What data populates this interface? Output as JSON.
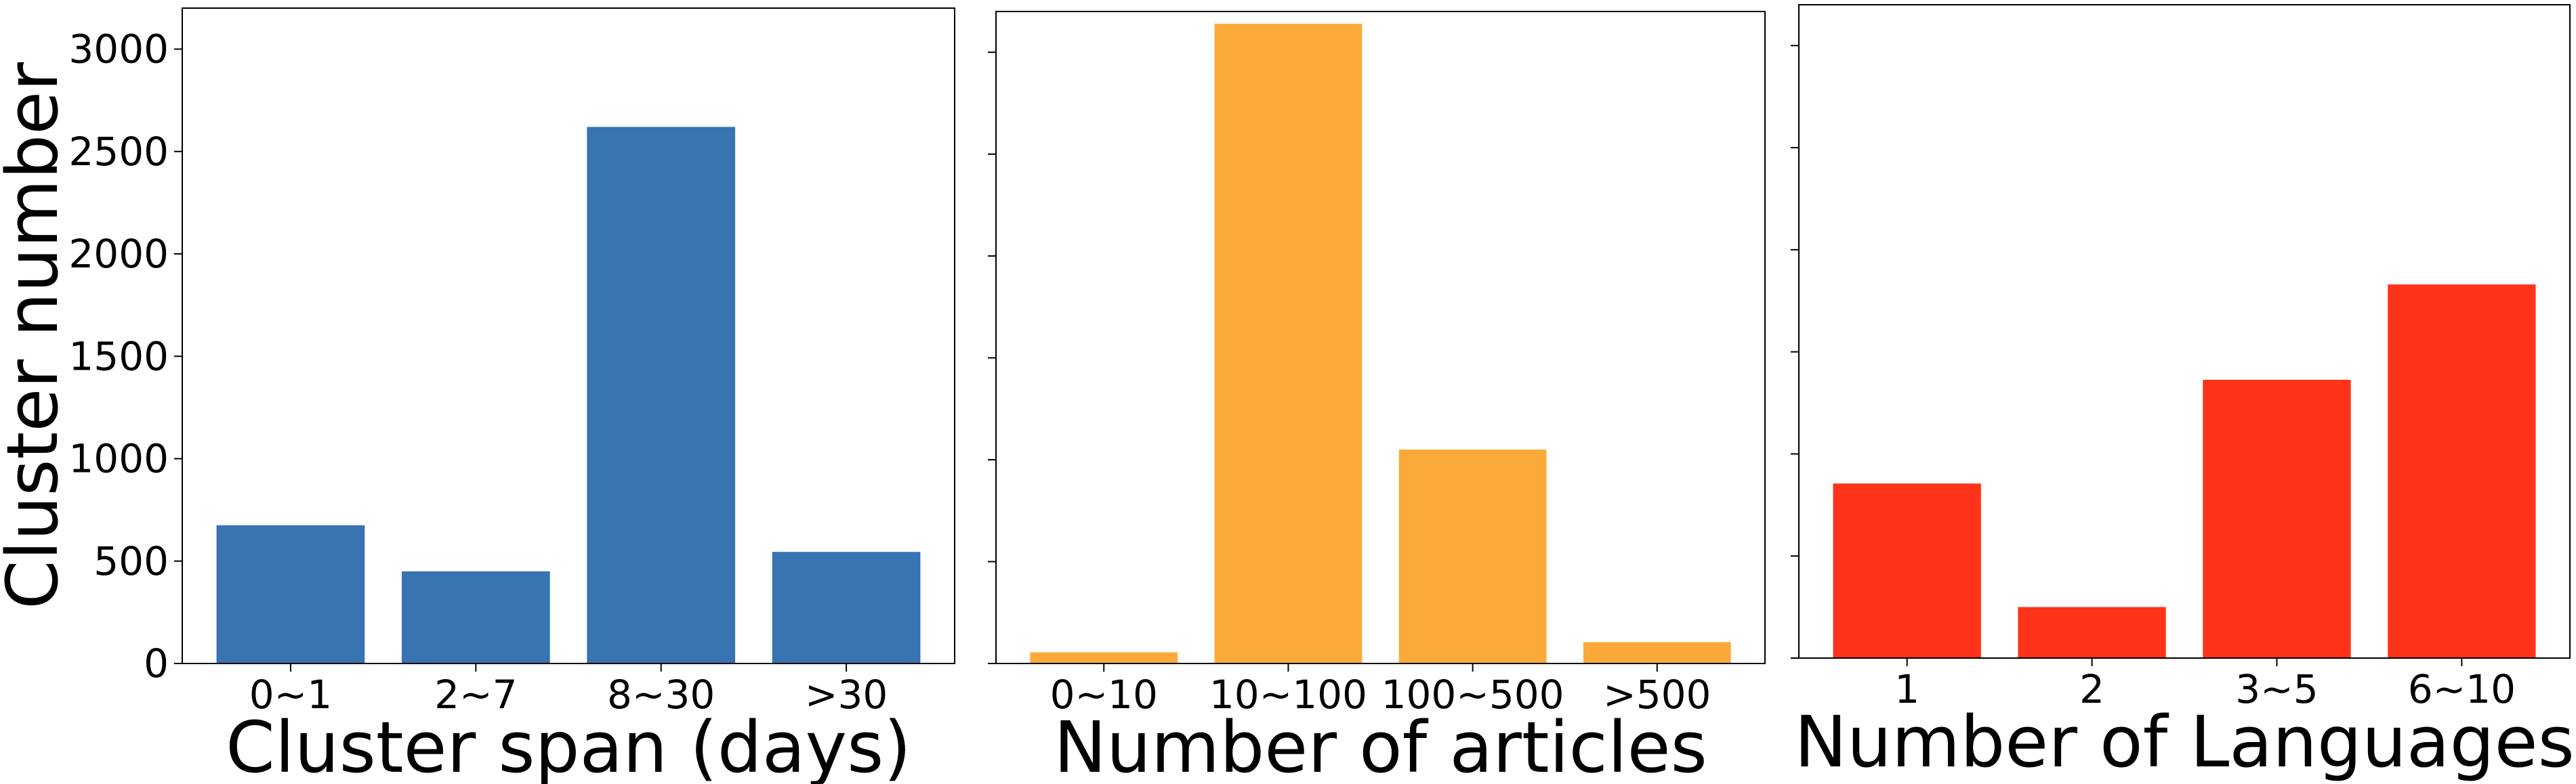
{
  "chart_data": [
    {
      "type": "bar",
      "ylabel": "Cluster number",
      "xlabel": "Cluster span (days)",
      "categories": [
        "0~1",
        "2~7",
        "8~30",
        ">30"
      ],
      "values": [
        675,
        450,
        2620,
        545
      ],
      "color": "#3873b2",
      "ylim": [
        0,
        3200
      ],
      "yticks": [
        0,
        500,
        1000,
        1500,
        2000,
        2500,
        3000
      ],
      "show_tick_labels": true
    },
    {
      "type": "bar",
      "xlabel": "Number of articles",
      "categories": [
        "0~10",
        "10~100",
        "100~500",
        ">500"
      ],
      "values": [
        55,
        3140,
        1050,
        105
      ],
      "color": "#fbaa39",
      "ylim": [
        0,
        3200
      ],
      "yticks": [
        0,
        500,
        1000,
        1500,
        2000,
        2500,
        3000
      ],
      "show_tick_labels": false
    },
    {
      "type": "bar",
      "xlabel": "Number of Languages",
      "categories": [
        "1",
        "2",
        "3~5",
        "6~10"
      ],
      "values": [
        855,
        250,
        1363,
        1830
      ],
      "color": "#fe331a",
      "ylim": [
        0,
        3200
      ],
      "yticks": [
        0,
        500,
        1000,
        1500,
        2000,
        2500,
        3000
      ],
      "show_tick_labels": false
    }
  ]
}
